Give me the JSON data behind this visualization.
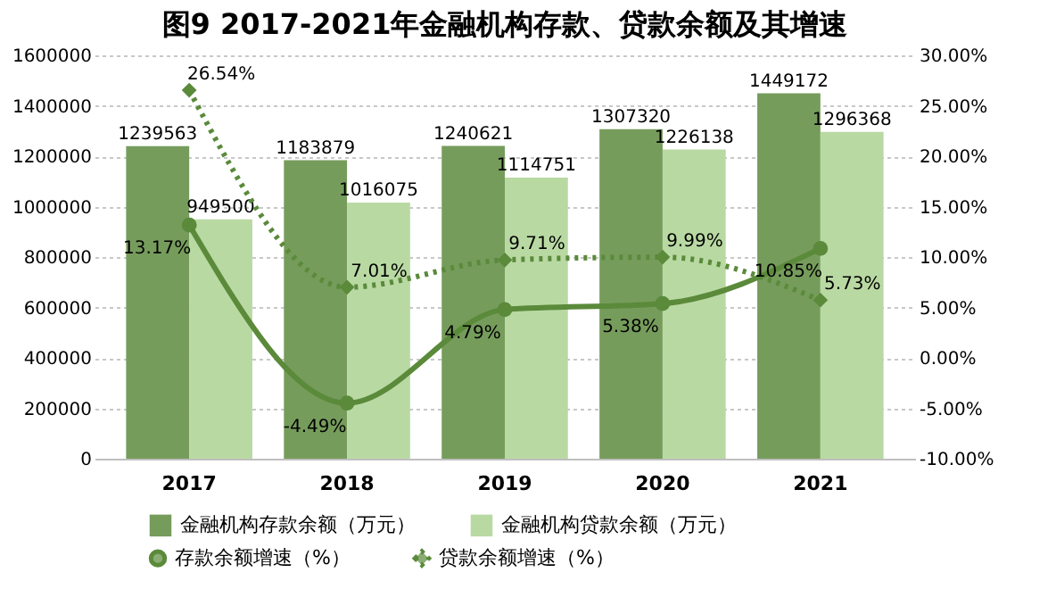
{
  "chart_data": {
    "type": "bar",
    "title": "图9  2017-2021年金融机构存款、贷款余额及其增速",
    "categories": [
      "2017",
      "2018",
      "2019",
      "2020",
      "2021"
    ],
    "series": [
      {
        "name": "金融机构存款余额（万元）",
        "color": "#769c5c",
        "values": [
          1239563,
          1183879,
          1240621,
          1307320,
          1449172
        ],
        "value_labels": [
          "1239563",
          "1183879",
          "1240621",
          "1307320",
          "1449172"
        ]
      },
      {
        "name": "金融机构贷款余额（万元）",
        "color": "#b9d9a3",
        "values": [
          949500,
          1016075,
          1114751,
          1226138,
          1296368
        ],
        "value_labels": [
          "949500",
          "1016075",
          "1114751",
          "1226138",
          "1296368"
        ]
      },
      {
        "name": "存款余额增速（%）",
        "type": "line",
        "axis": "y2",
        "color": "#5a8a3a",
        "marker": "circle",
        "line_style": "solid",
        "values": [
          13.17,
          -4.49,
          4.79,
          5.38,
          10.85
        ],
        "value_labels": [
          "13.17%",
          "-4.49%",
          "4.79%",
          "5.38%",
          "10.85%"
        ]
      },
      {
        "name": "贷款余额增速（%）",
        "type": "line",
        "axis": "y2",
        "color": "#5a8a3a",
        "marker": "diamond",
        "line_style": "dotted",
        "values": [
          26.54,
          7.01,
          9.71,
          9.99,
          5.73
        ],
        "value_labels": [
          "26.54%",
          "7.01%",
          "9.71%",
          "9.99%",
          "5.73%"
        ]
      }
    ],
    "ylim": [
      0,
      1600000
    ],
    "yticks": [
      0,
      200000,
      400000,
      600000,
      800000,
      1000000,
      1200000,
      1400000,
      1600000
    ],
    "y2lim": [
      -10,
      30
    ],
    "y2ticks": [
      {
        "value": -10,
        "label": "-10.00%"
      },
      {
        "value": -5,
        "label": "-5.00%"
      },
      {
        "value": 0,
        "label": "0.00%"
      },
      {
        "value": 5,
        "label": "5.00%"
      },
      {
        "value": 10,
        "label": "10.00%"
      },
      {
        "value": 15,
        "label": "15.00%"
      },
      {
        "value": 20,
        "label": "20.00%"
      },
      {
        "value": 25,
        "label": "25.00%"
      },
      {
        "value": 30,
        "label": "30.00%"
      }
    ],
    "grid": "y",
    "legend": "bottom"
  }
}
